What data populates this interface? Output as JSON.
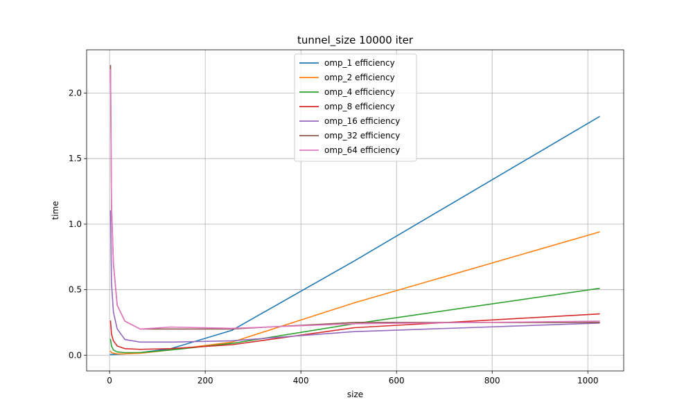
{
  "chart_data": {
    "type": "line",
    "title": "tunnel_size 10000 iter",
    "xlabel": "size",
    "ylabel": "time",
    "xlim": [
      -48,
      1075
    ],
    "ylim": [
      -0.12,
      2.33
    ],
    "xticks": [
      0,
      200,
      400,
      600,
      800,
      1000
    ],
    "xtick_labels": [
      "0",
      "200",
      "400",
      "600",
      "800",
      "1000"
    ],
    "yticks": [
      0.0,
      0.5,
      1.0,
      1.5,
      2.0
    ],
    "ytick_labels": [
      "0.0",
      "0.5",
      "1.0",
      "1.5",
      "2.0"
    ],
    "grid": true,
    "legend_position": "top-center",
    "series": [
      {
        "name": "omp_1 efficiency",
        "color": "#1f77b4",
        "x": [
          2,
          4,
          8,
          16,
          32,
          64,
          128,
          256,
          512,
          1024
        ],
        "y": [
          0.005,
          0.005,
          0.006,
          0.007,
          0.01,
          0.02,
          0.05,
          0.19,
          0.72,
          1.82
        ]
      },
      {
        "name": "omp_2 efficiency",
        "color": "#ff7f0e",
        "x": [
          2,
          4,
          8,
          16,
          32,
          64,
          128,
          256,
          512,
          1024
        ],
        "y": [
          0.03,
          0.02,
          0.015,
          0.01,
          0.01,
          0.015,
          0.04,
          0.1,
          0.4,
          0.94
        ]
      },
      {
        "name": "omp_4 efficiency",
        "color": "#2ca02c",
        "x": [
          2,
          4,
          8,
          16,
          32,
          64,
          128,
          256,
          512,
          1024
        ],
        "y": [
          0.12,
          0.07,
          0.04,
          0.025,
          0.02,
          0.02,
          0.04,
          0.09,
          0.24,
          0.51
        ]
      },
      {
        "name": "omp_8 efficiency",
        "color": "#d62728",
        "x": [
          2,
          4,
          8,
          16,
          32,
          64,
          128,
          256,
          512,
          1024
        ],
        "y": [
          0.26,
          0.16,
          0.11,
          0.07,
          0.05,
          0.045,
          0.05,
          0.08,
          0.21,
          0.315
        ]
      },
      {
        "name": "omp_16 efficiency",
        "color": "#9467bd",
        "x": [
          2,
          4,
          8,
          16,
          32,
          64,
          128,
          256,
          512,
          1024
        ],
        "y": [
          1.1,
          0.55,
          0.33,
          0.2,
          0.12,
          0.1,
          0.1,
          0.11,
          0.18,
          0.245
        ]
      },
      {
        "name": "omp_32 efficiency",
        "color": "#8c564b",
        "x": [
          2,
          4,
          8,
          16,
          32,
          64,
          128,
          256,
          512,
          1024
        ],
        "y": [
          2.21,
          1.15,
          0.7,
          0.38,
          0.26,
          0.2,
          0.2,
          0.2,
          0.25,
          0.25
        ]
      },
      {
        "name": "omp_64 efficiency",
        "color": "#e377c2",
        "x": [
          2,
          4,
          8,
          16,
          32,
          64,
          128,
          256,
          512,
          1024
        ],
        "y": [
          2.18,
          1.14,
          0.69,
          0.38,
          0.26,
          0.2,
          0.215,
          0.205,
          0.24,
          0.26
        ]
      }
    ]
  }
}
